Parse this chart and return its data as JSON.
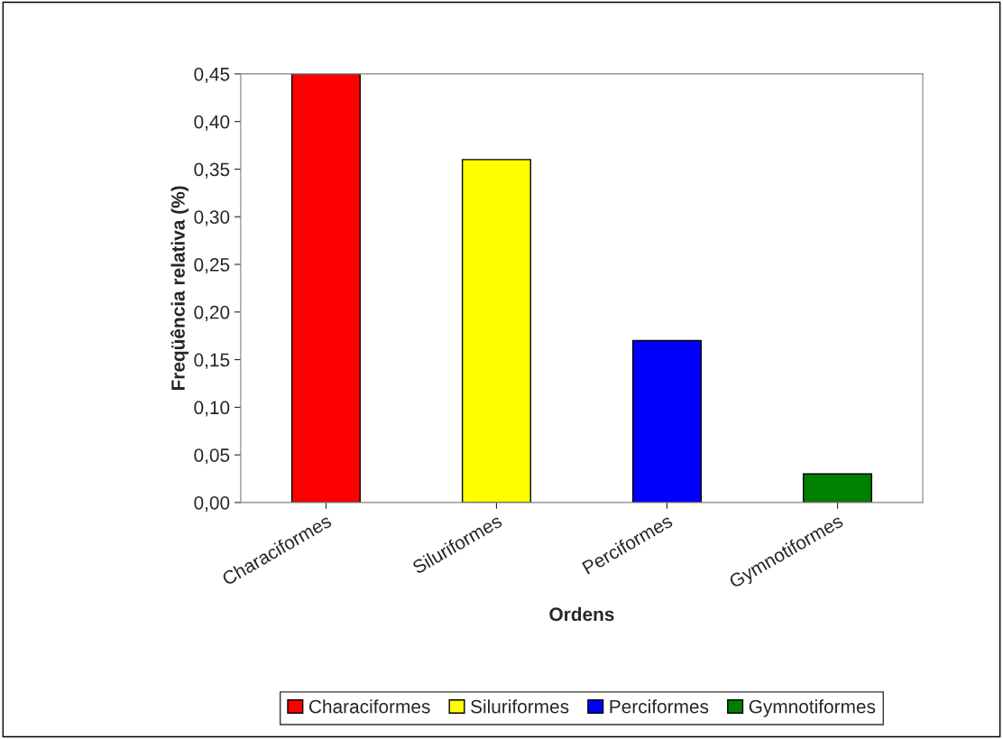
{
  "chart_data": {
    "type": "bar",
    "xlabel": "Ordens",
    "ylabel": "Freqüência relativa (%)",
    "categories": [
      "Characiformes",
      "Siluriformes",
      "Perciformes",
      "Gymnotiformes"
    ],
    "series": [
      {
        "name": "Characiformes",
        "color": "#ff0000",
        "values": [
          0.45,
          null,
          null,
          null
        ]
      },
      {
        "name": "Siluriformes",
        "color": "#ffff00",
        "values": [
          null,
          0.36,
          null,
          null
        ]
      },
      {
        "name": "Perciformes",
        "color": "#0000ff",
        "values": [
          null,
          null,
          0.17,
          null
        ]
      },
      {
        "name": "Gymnotiformes",
        "color": "#008000",
        "values": [
          null,
          null,
          null,
          0.03
        ]
      }
    ],
    "ylim": [
      0,
      0.45
    ],
    "yticks": [
      {
        "value": 0,
        "label": "0,00"
      },
      {
        "value": 0.05,
        "label": "0,05"
      },
      {
        "value": 0.1,
        "label": "0,10"
      },
      {
        "value": 0.15,
        "label": "0,15"
      },
      {
        "value": 0.2,
        "label": "0,20"
      },
      {
        "value": 0.25,
        "label": "0,25"
      },
      {
        "value": 0.3,
        "label": "0,30"
      },
      {
        "value": 0.35,
        "label": "0,35"
      },
      {
        "value": 0.4,
        "label": "0,40"
      },
      {
        "value": 0.45,
        "label": "0,45"
      }
    ],
    "grid": false,
    "legend": "bottom"
  }
}
